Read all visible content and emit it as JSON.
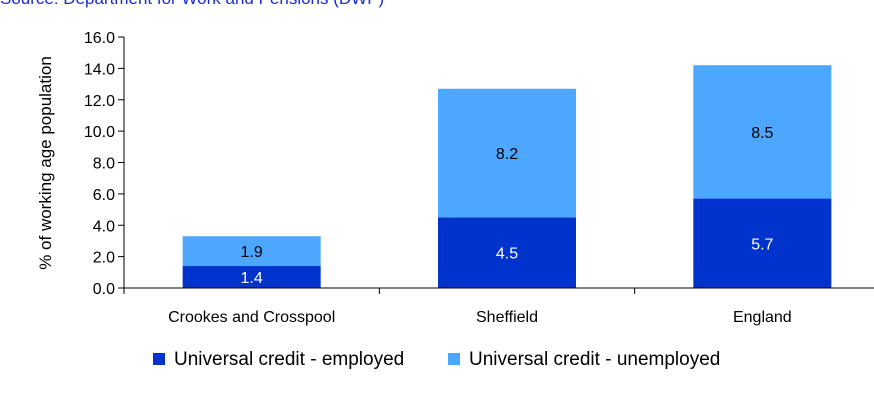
{
  "header_text": "Source: Department for Work and Pensions (DWP)",
  "chart_data": {
    "type": "bar",
    "stacked": true,
    "categories": [
      "Crookes and Crosspool",
      "Sheffield",
      "England"
    ],
    "series": [
      {
        "name": "Universal credit - employed",
        "values": [
          1.4,
          4.5,
          5.7
        ],
        "labels": [
          "1.4",
          "4.5",
          "5.7"
        ],
        "color": "#0033cc"
      },
      {
        "name": "Universal credit - unemployed",
        "values": [
          1.9,
          8.2,
          8.5
        ],
        "labels": [
          "1.9",
          "8.2",
          "8.5"
        ],
        "color": "#4da6ff"
      }
    ],
    "ylabel": "% of working age population",
    "ylim": [
      0,
      16
    ],
    "yticks": [
      "0.0",
      "2.0",
      "4.0",
      "6.0",
      "8.0",
      "10.0",
      "12.0",
      "14.0",
      "16.0"
    ],
    "grid": false,
    "legend_position": "bottom"
  }
}
